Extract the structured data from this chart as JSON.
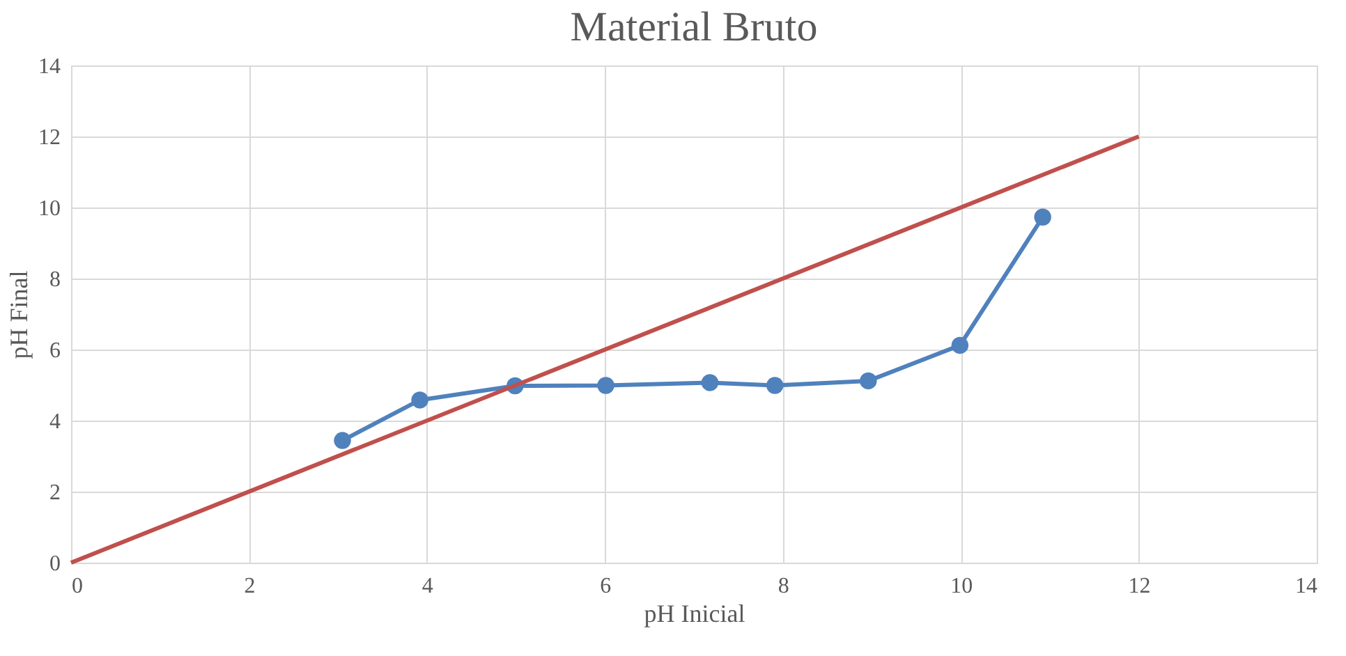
{
  "chart_data": {
    "type": "line",
    "title": "Material Bruto",
    "xlabel": "pH Inicial",
    "ylabel": "pH Final",
    "series": [
      {
        "x": [
          3.05,
          3.92,
          4.99,
          6.01,
          7.18,
          7.91,
          8.96,
          9.99,
          10.92
        ],
        "values": [
          3.44,
          4.58,
          4.98,
          4.99,
          5.07,
          4.99,
          5.12,
          6.12,
          9.73
        ],
        "color": "#4f81bd",
        "marker": "circle"
      },
      {
        "x": [
          0,
          12
        ],
        "values": [
          0,
          12
        ],
        "color": "#c0504d",
        "marker": "none"
      }
    ],
    "xlim": [
      0,
      14
    ],
    "xticks": [
      0,
      2,
      4,
      6,
      8,
      10,
      12,
      14
    ],
    "ylim": [
      0,
      14
    ],
    "yticks": [
      0,
      2,
      4,
      6,
      8,
      10,
      12,
      14
    ],
    "grid": true
  }
}
